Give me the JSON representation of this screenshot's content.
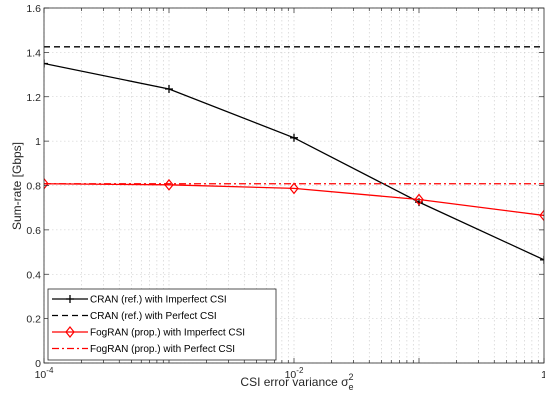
{
  "chart_data": {
    "type": "line",
    "xlabel": "CSI error variance σ",
    "xlabel_math": {
      "base": "σ",
      "sub": "e",
      "sup": "2"
    },
    "ylabel": "Sum-rate [Gbps]",
    "xscale": "log",
    "xlim": [
      0.0001,
      1
    ],
    "ylim": [
      0,
      1.6
    ],
    "grid": true,
    "legend_position": "bottom-left",
    "x_ticks": [
      {
        "value": 0.0001,
        "base": "10",
        "exp": "-4"
      },
      {
        "value": 0.01,
        "base": "10",
        "exp": "-2"
      },
      {
        "value": 1,
        "base": "1",
        "exp": ""
      }
    ],
    "y_ticks": [
      {
        "value": 0,
        "label": "0"
      },
      {
        "value": 0.2,
        "label": "0.2"
      },
      {
        "value": 0.4,
        "label": "0.4"
      },
      {
        "value": 0.6,
        "label": "0.6"
      },
      {
        "value": 0.8,
        "label": "0.8"
      },
      {
        "value": 1,
        "label": "1"
      },
      {
        "value": 1.2,
        "label": "1.2"
      },
      {
        "value": 1.4,
        "label": "1.4"
      },
      {
        "value": 1.6,
        "label": "1.6"
      }
    ],
    "series": [
      {
        "name": "CRAN (ref.) with Imperfect CSI",
        "color": "#000000",
        "dash": "solid",
        "marker": "plus",
        "x": [
          0.0001,
          0.001,
          0.01,
          0.1,
          1
        ],
        "y": [
          1.35,
          1.235,
          1.015,
          0.725,
          0.465
        ]
      },
      {
        "name": "CRAN (ref.) with Perfect CSI",
        "color": "#000000",
        "dash": "dashed",
        "marker": "none",
        "x": [
          0.0001,
          1
        ],
        "y": [
          1.425,
          1.425
        ]
      },
      {
        "name": "FogRAN (prop.) with Imperfect CSI",
        "color": "#ff0000",
        "dash": "solid",
        "marker": "diamond",
        "x": [
          0.0001,
          0.001,
          0.01,
          0.1,
          1
        ],
        "y": [
          0.808,
          0.803,
          0.787,
          0.737,
          0.665
        ]
      },
      {
        "name": "FogRAN (prop.)  with Perfect CSI",
        "color": "#ff0000",
        "dash": "dashdot",
        "marker": "none",
        "x": [
          0.0001,
          1
        ],
        "y": [
          0.808,
          0.808
        ]
      }
    ]
  }
}
